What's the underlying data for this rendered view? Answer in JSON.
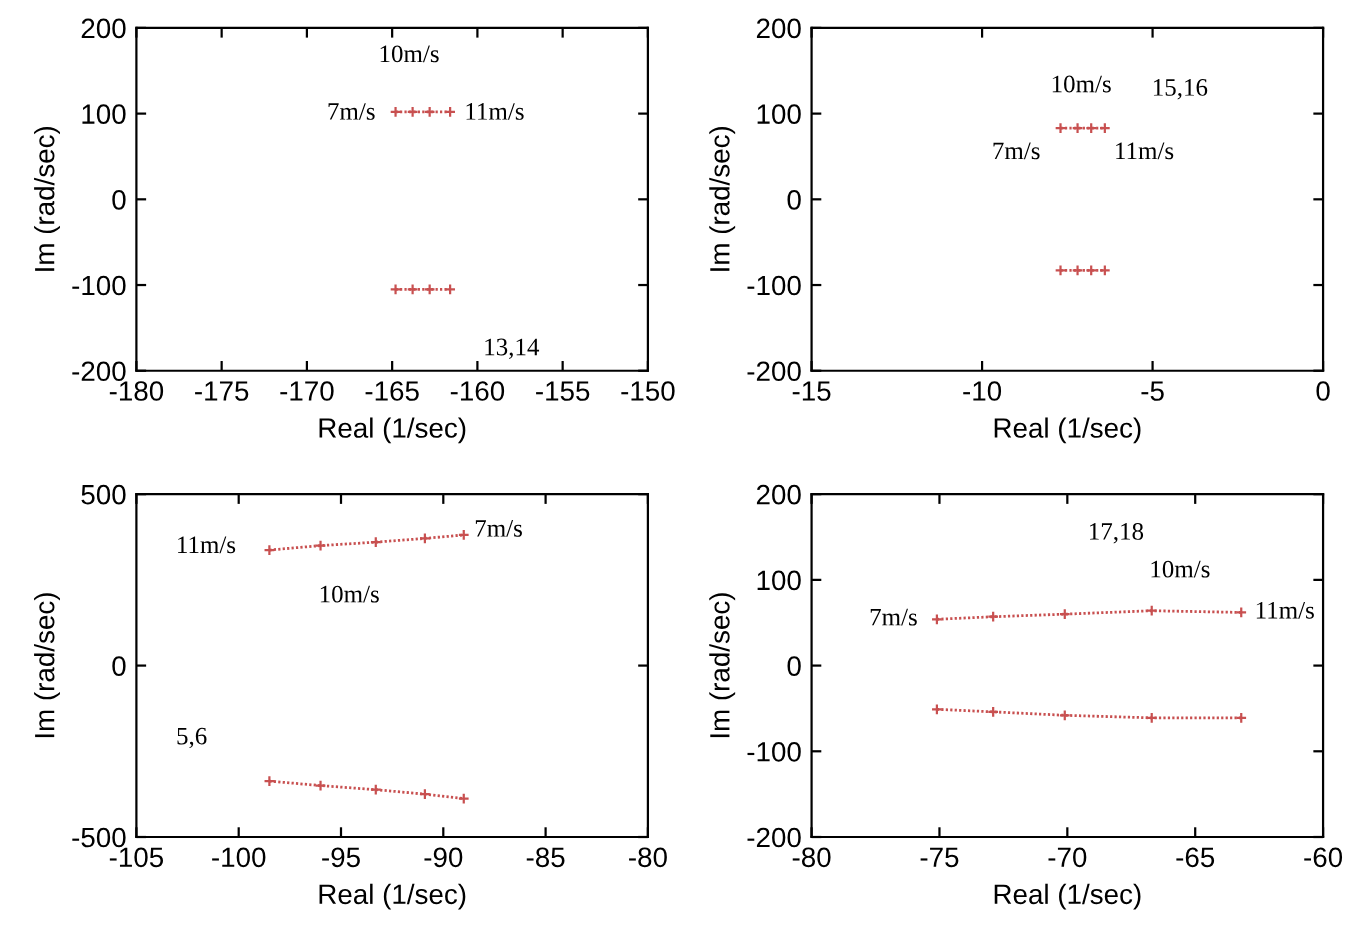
{
  "chart_data": [
    {
      "type": "line",
      "xlabel": "Real (1/sec)",
      "ylabel": "Im (rad/sec)",
      "xlim": [
        -180,
        -150
      ],
      "xticks": [
        -180,
        -175,
        -170,
        -165,
        -160,
        -155,
        -150
      ],
      "ylim": [
        -200,
        200
      ],
      "yticks": [
        -200,
        -100,
        0,
        100,
        200
      ],
      "marker": "cross",
      "line_style": "dotted",
      "series": [
        {
          "color": "#c85050",
          "x": [
            -164.8,
            -163.8,
            -162.8,
            -161.6
          ],
          "values": [
            102,
            102,
            102,
            102
          ]
        },
        {
          "color": "#c85050",
          "x": [
            -164.8,
            -163.8,
            -162.8,
            -161.6
          ],
          "values": [
            -105,
            -105,
            -105,
            -105
          ]
        }
      ],
      "annotations": [
        "10m/s",
        "7m/s",
        "11m/s",
        "13,14"
      ]
    },
    {
      "type": "line",
      "xlabel": "Real (1/sec)",
      "ylabel": "Im (rad/sec)",
      "xlim": [
        -15,
        0
      ],
      "xticks": [
        -15,
        -10,
        -5,
        0
      ],
      "ylim": [
        -200,
        200
      ],
      "yticks": [
        -200,
        -100,
        0,
        100,
        200
      ],
      "marker": "cross",
      "line_style": "dotted",
      "series": [
        {
          "color": "#c85050",
          "x": [
            -7.7,
            -7.2,
            -6.8,
            -6.4
          ],
          "values": [
            83,
            83,
            83,
            83
          ]
        },
        {
          "color": "#c85050",
          "x": [
            -7.7,
            -7.2,
            -6.8,
            -6.4
          ],
          "values": [
            -83,
            -83,
            -83,
            -83
          ]
        }
      ],
      "annotations": [
        "10m/s",
        "15,16",
        "7m/s",
        "11m/s"
      ]
    },
    {
      "type": "line",
      "xlabel": "Real (1/sec)",
      "ylabel": "Im (rad/sec)",
      "xlim": [
        -105,
        -80
      ],
      "xticks": [
        -105,
        -100,
        -95,
        -90,
        -85,
        -80
      ],
      "ylim": [
        -500,
        500
      ],
      "yticks": [
        -500,
        0,
        500
      ],
      "marker": "cross",
      "line_style": "dotted",
      "series": [
        {
          "color": "#c85050",
          "x": [
            -98.5,
            -96,
            -93.3,
            -90.9,
            -89
          ],
          "values": [
            337,
            350,
            360,
            371,
            381
          ]
        },
        {
          "color": "#c85050",
          "x": [
            -98.5,
            -96,
            -93.3,
            -90.9,
            -89
          ],
          "values": [
            -337,
            -350,
            -362,
            -375,
            -388
          ]
        }
      ],
      "annotations": [
        "11m/s",
        "7m/s",
        "10m/s",
        "5,6"
      ]
    },
    {
      "type": "line",
      "xlabel": "Real (1/sec)",
      "ylabel": "Im (rad/sec)",
      "xlim": [
        -80,
        -60
      ],
      "xticks": [
        -80,
        -75,
        -70,
        -65,
        -60
      ],
      "ylim": [
        -200,
        200
      ],
      "yticks": [
        -200,
        -100,
        0,
        100,
        200
      ],
      "marker": "cross",
      "line_style": "dotted",
      "series": [
        {
          "color": "#c85050",
          "x": [
            -75.1,
            -72.9,
            -70.1,
            -66.7,
            -63.2
          ],
          "values": [
            54,
            57,
            60,
            64,
            62
          ]
        },
        {
          "color": "#c85050",
          "x": [
            -75.1,
            -72.9,
            -70.1,
            -66.7,
            -63.2
          ],
          "values": [
            -51,
            -54,
            -58,
            -61,
            -61
          ]
        }
      ],
      "annotations": [
        "17,18",
        "10m/s",
        "7m/s",
        "11m/s"
      ]
    }
  ]
}
